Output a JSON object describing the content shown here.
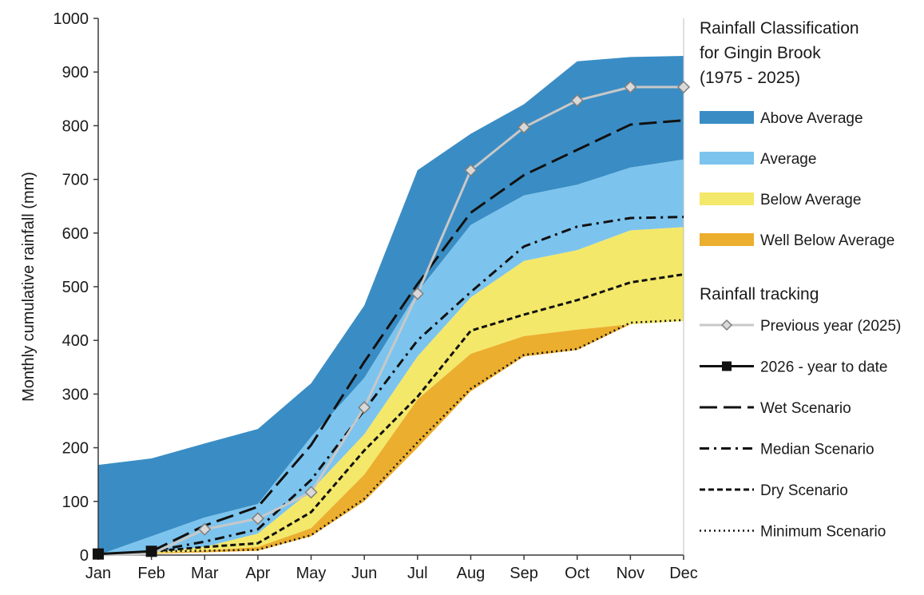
{
  "chart_data": {
    "type": "area",
    "title": "",
    "xlabel": "",
    "ylabel": "Monthly cumulative rainfall (mm)",
    "ylim": [
      0,
      1000
    ],
    "yticks": [
      0,
      100,
      200,
      300,
      400,
      500,
      600,
      700,
      800,
      900,
      1000
    ],
    "categories": [
      "Jan",
      "Feb",
      "Mar",
      "Apr",
      "May",
      "Jun",
      "Jul",
      "Aug",
      "Sep",
      "Oct",
      "Nov",
      "Dec"
    ],
    "grid": false,
    "legend_position": "right",
    "bands": [
      {
        "name": "Above Average",
        "color": "#3a8dc4",
        "lower": [
          0,
          35,
          70,
          95,
          220,
          330,
          490,
          615,
          670,
          690,
          722,
          737
        ],
        "upper": [
          168,
          180,
          208,
          235,
          320,
          465,
          717,
          785,
          840,
          920,
          928,
          930
        ]
      },
      {
        "name": "Average",
        "color": "#7cc4ee",
        "lower": [
          0,
          5,
          15,
          40,
          120,
          225,
          370,
          480,
          548,
          568,
          605,
          611
        ],
        "upper": [
          0,
          35,
          70,
          95,
          220,
          330,
          490,
          615,
          670,
          690,
          722,
          737
        ]
      },
      {
        "name": "Below Average",
        "color": "#f4e86a",
        "lower": [
          0,
          3,
          8,
          15,
          50,
          150,
          290,
          375,
          408,
          420,
          430,
          436
        ],
        "upper": [
          0,
          5,
          15,
          40,
          120,
          225,
          370,
          480,
          548,
          568,
          605,
          611
        ]
      },
      {
        "name": "Well Below Average",
        "color": "#ecae2e",
        "lower": [
          0,
          2,
          5,
          8,
          35,
          100,
          200,
          305,
          370,
          382,
          430,
          436
        ],
        "upper": [
          0,
          3,
          8,
          15,
          50,
          150,
          290,
          375,
          408,
          420,
          430,
          436
        ]
      }
    ],
    "series": [
      {
        "name": "Previous year (2025)",
        "style": "grey-line-diamond",
        "color": "#c8c8c8",
        "values": [
          0,
          2,
          48,
          68,
          117,
          275,
          487,
          717,
          797,
          847,
          872,
          872
        ]
      },
      {
        "name": "2026 - year to date",
        "style": "solid-square",
        "color": "#111111",
        "values": [
          2,
          7,
          null,
          null,
          null,
          null,
          null,
          null,
          null,
          null,
          null,
          null
        ]
      },
      {
        "name": "Wet Scenario",
        "style": "long-dash",
        "color": "#111111",
        "values": [
          null,
          7,
          55,
          90,
          205,
          360,
          505,
          638,
          708,
          755,
          802,
          810
        ]
      },
      {
        "name": "Median Scenario",
        "style": "dash-dot",
        "color": "#111111",
        "values": [
          null,
          7,
          25,
          48,
          140,
          270,
          400,
          490,
          575,
          612,
          628,
          630
        ]
      },
      {
        "name": "Dry Scenario",
        "style": "short-dash",
        "color": "#111111",
        "values": [
          null,
          7,
          15,
          22,
          80,
          195,
          295,
          418,
          448,
          475,
          508,
          523
        ]
      },
      {
        "name": "Minimum Scenario",
        "style": "dotted",
        "color": "#111111",
        "values": [
          null,
          7,
          8,
          10,
          37,
          105,
          210,
          310,
          373,
          384,
          433,
          438
        ]
      }
    ]
  },
  "legend": {
    "title_lines": [
      "Rainfall Classification",
      "for Gingin Brook",
      "(1975 - 2025)"
    ],
    "tracking_title": "Rainfall tracking"
  }
}
